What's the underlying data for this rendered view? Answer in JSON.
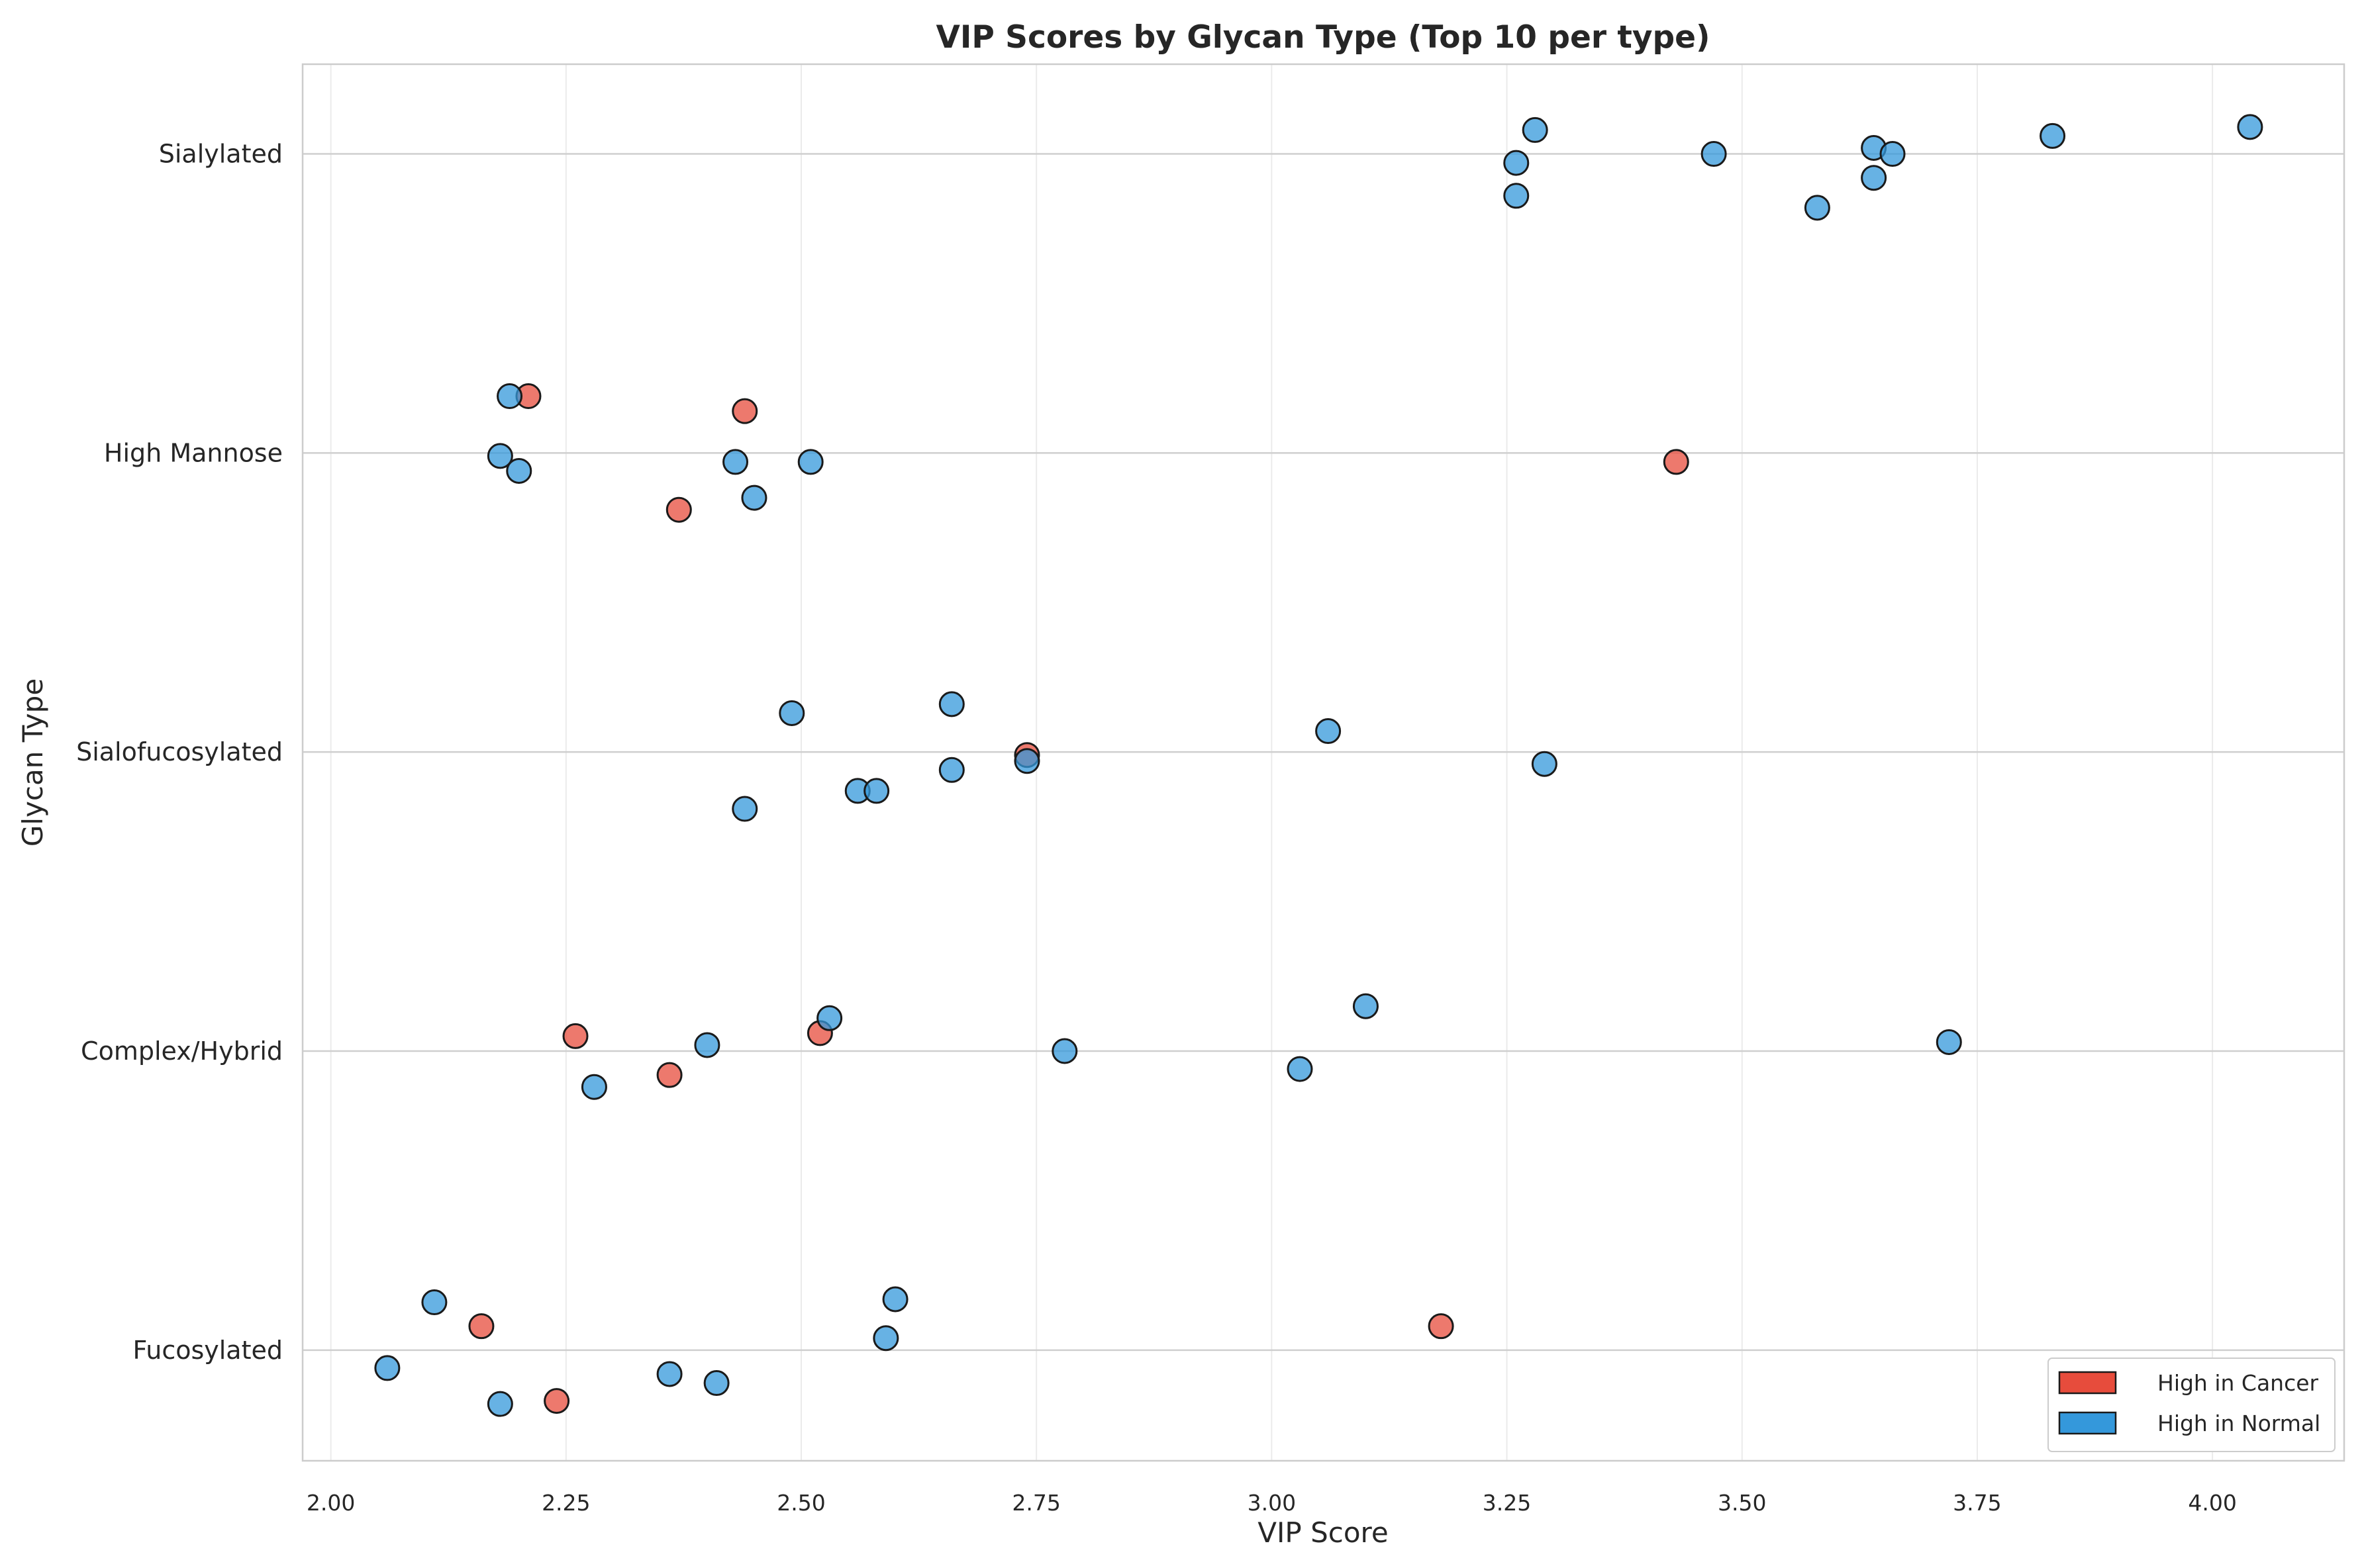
{
  "chart_data": {
    "type": "scatter",
    "title": "VIP Scores by Glycan Type (Top 10 per type)",
    "xlabel": "VIP Score",
    "ylabel": "Glycan Type",
    "xlim": [
      1.97,
      4.14
    ],
    "x_ticks": [
      "2.00",
      "2.25",
      "2.50",
      "2.75",
      "3.00",
      "3.25",
      "3.50",
      "3.75",
      "4.00"
    ],
    "categories": [
      "Fucosylated",
      "Complex/Hybrid",
      "Sialofucosylated",
      "High Mannose",
      "Sialylated"
    ],
    "grid": true,
    "legend_position": "bottom-right",
    "series": [
      {
        "name": "High in Cancer",
        "color": "#e74c3c",
        "points": [
          {
            "category": "High Mannose",
            "x": 2.21,
            "jitter": 0.19
          },
          {
            "category": "High Mannose",
            "x": 2.44,
            "jitter": 0.14
          },
          {
            "category": "High Mannose",
            "x": 3.43,
            "jitter": -0.03
          },
          {
            "category": "High Mannose",
            "x": 2.37,
            "jitter": -0.19
          },
          {
            "category": "Sialofucosylated",
            "x": 2.74,
            "jitter": -0.01
          },
          {
            "category": "Complex/Hybrid",
            "x": 2.26,
            "jitter": 0.05
          },
          {
            "category": "Complex/Hybrid",
            "x": 2.52,
            "jitter": 0.06
          },
          {
            "category": "Complex/Hybrid",
            "x": 2.36,
            "jitter": -0.08
          },
          {
            "category": "Fucosylated",
            "x": 2.16,
            "jitter": 0.08
          },
          {
            "category": "Fucosylated",
            "x": 3.18,
            "jitter": 0.08
          },
          {
            "category": "Fucosylated",
            "x": 2.24,
            "jitter": -0.17
          }
        ]
      },
      {
        "name": "High in Normal",
        "color": "#3498db",
        "points": [
          {
            "category": "Sialylated",
            "x": 3.28,
            "jitter": 0.08
          },
          {
            "category": "Sialylated",
            "x": 3.26,
            "jitter": -0.03
          },
          {
            "category": "Sialylated",
            "x": 3.26,
            "jitter": -0.14
          },
          {
            "category": "Sialylated",
            "x": 3.47,
            "jitter": 0.0
          },
          {
            "category": "Sialylated",
            "x": 3.64,
            "jitter": 0.02
          },
          {
            "category": "Sialylated",
            "x": 3.66,
            "jitter": 0.0
          },
          {
            "category": "Sialylated",
            "x": 3.64,
            "jitter": -0.08
          },
          {
            "category": "Sialylated",
            "x": 3.58,
            "jitter": -0.18
          },
          {
            "category": "Sialylated",
            "x": 3.83,
            "jitter": 0.06
          },
          {
            "category": "Sialylated",
            "x": 4.04,
            "jitter": 0.09
          },
          {
            "category": "High Mannose",
            "x": 2.19,
            "jitter": 0.19
          },
          {
            "category": "High Mannose",
            "x": 2.18,
            "jitter": -0.01
          },
          {
            "category": "High Mannose",
            "x": 2.2,
            "jitter": -0.06
          },
          {
            "category": "High Mannose",
            "x": 2.43,
            "jitter": -0.03
          },
          {
            "category": "High Mannose",
            "x": 2.45,
            "jitter": -0.15
          },
          {
            "category": "High Mannose",
            "x": 2.51,
            "jitter": -0.03
          },
          {
            "category": "Sialofucosylated",
            "x": 2.49,
            "jitter": 0.13
          },
          {
            "category": "Sialofucosylated",
            "x": 2.66,
            "jitter": 0.16
          },
          {
            "category": "Sialofucosylated",
            "x": 3.06,
            "jitter": 0.07
          },
          {
            "category": "Sialofucosylated",
            "x": 2.74,
            "jitter": -0.03
          },
          {
            "category": "Sialofucosylated",
            "x": 2.66,
            "jitter": -0.06
          },
          {
            "category": "Sialofucosylated",
            "x": 3.29,
            "jitter": -0.04
          },
          {
            "category": "Sialofucosylated",
            "x": 2.56,
            "jitter": -0.13
          },
          {
            "category": "Sialofucosylated",
            "x": 2.58,
            "jitter": -0.13
          },
          {
            "category": "Sialofucosylated",
            "x": 2.44,
            "jitter": -0.19
          },
          {
            "category": "Complex/Hybrid",
            "x": 2.53,
            "jitter": 0.11
          },
          {
            "category": "Complex/Hybrid",
            "x": 3.1,
            "jitter": 0.15
          },
          {
            "category": "Complex/Hybrid",
            "x": 2.4,
            "jitter": 0.02
          },
          {
            "category": "Complex/Hybrid",
            "x": 2.78,
            "jitter": 0.0
          },
          {
            "category": "Complex/Hybrid",
            "x": 3.72,
            "jitter": 0.03
          },
          {
            "category": "Complex/Hybrid",
            "x": 3.03,
            "jitter": -0.06
          },
          {
            "category": "Complex/Hybrid",
            "x": 2.28,
            "jitter": -0.12
          },
          {
            "category": "Fucosylated",
            "x": 2.11,
            "jitter": 0.16
          },
          {
            "category": "Fucosylated",
            "x": 2.6,
            "jitter": 0.17
          },
          {
            "category": "Fucosylated",
            "x": 2.59,
            "jitter": 0.04
          },
          {
            "category": "Fucosylated",
            "x": 2.06,
            "jitter": -0.06
          },
          {
            "category": "Fucosylated",
            "x": 2.36,
            "jitter": -0.08
          },
          {
            "category": "Fucosylated",
            "x": 2.41,
            "jitter": -0.11
          },
          {
            "category": "Fucosylated",
            "x": 2.18,
            "jitter": -0.18
          }
        ]
      }
    ]
  }
}
